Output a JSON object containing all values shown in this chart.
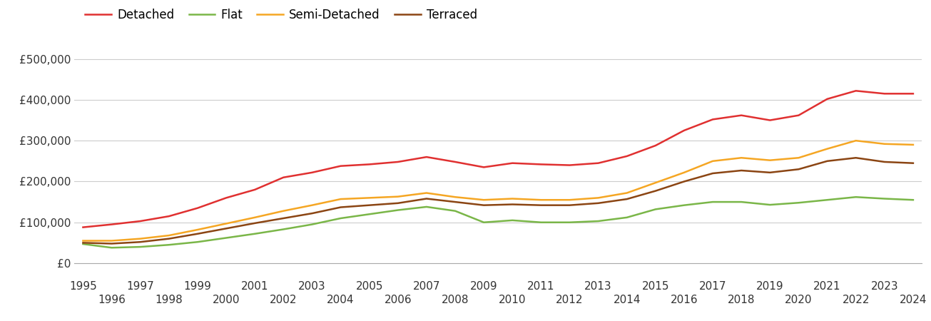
{
  "series": {
    "Detached": {
      "color": "#e03030",
      "years": [
        1995,
        1996,
        1997,
        1998,
        1999,
        2000,
        2001,
        2002,
        2003,
        2004,
        2005,
        2006,
        2007,
        2008,
        2009,
        2010,
        2011,
        2012,
        2013,
        2014,
        2015,
        2016,
        2017,
        2018,
        2019,
        2020,
        2021,
        2022,
        2023,
        2024
      ],
      "values": [
        88000,
        95000,
        103000,
        115000,
        135000,
        160000,
        180000,
        210000,
        222000,
        238000,
        242000,
        248000,
        260000,
        248000,
        235000,
        245000,
        242000,
        240000,
        245000,
        262000,
        288000,
        325000,
        352000,
        362000,
        350000,
        362000,
        402000,
        422000,
        415000,
        415000
      ]
    },
    "Flat": {
      "color": "#7ab648",
      "years": [
        1995,
        1996,
        1997,
        1998,
        1999,
        2000,
        2001,
        2002,
        2003,
        2004,
        2005,
        2006,
        2007,
        2008,
        2009,
        2010,
        2011,
        2012,
        2013,
        2014,
        2015,
        2016,
        2017,
        2018,
        2019,
        2020,
        2021,
        2022,
        2023,
        2024
      ],
      "values": [
        47000,
        38000,
        40000,
        45000,
        52000,
        62000,
        72000,
        83000,
        95000,
        110000,
        120000,
        130000,
        138000,
        128000,
        100000,
        105000,
        100000,
        100000,
        103000,
        112000,
        132000,
        142000,
        150000,
        150000,
        143000,
        148000,
        155000,
        162000,
        158000,
        155000
      ]
    },
    "Semi-Detached": {
      "color": "#f5a623",
      "years": [
        1995,
        1996,
        1997,
        1998,
        1999,
        2000,
        2001,
        2002,
        2003,
        2004,
        2005,
        2006,
        2007,
        2008,
        2009,
        2010,
        2011,
        2012,
        2013,
        2014,
        2015,
        2016,
        2017,
        2018,
        2019,
        2020,
        2021,
        2022,
        2023,
        2024
      ],
      "values": [
        55000,
        55000,
        60000,
        68000,
        82000,
        97000,
        112000,
        128000,
        142000,
        157000,
        160000,
        163000,
        172000,
        162000,
        155000,
        158000,
        155000,
        155000,
        160000,
        172000,
        197000,
        222000,
        250000,
        258000,
        252000,
        258000,
        280000,
        300000,
        292000,
        290000
      ]
    },
    "Terraced": {
      "color": "#8B4513",
      "years": [
        1995,
        1996,
        1997,
        1998,
        1999,
        2000,
        2001,
        2002,
        2003,
        2004,
        2005,
        2006,
        2007,
        2008,
        2009,
        2010,
        2011,
        2012,
        2013,
        2014,
        2015,
        2016,
        2017,
        2018,
        2019,
        2020,
        2021,
        2022,
        2023,
        2024
      ],
      "values": [
        50000,
        48000,
        52000,
        60000,
        72000,
        85000,
        98000,
        110000,
        122000,
        137000,
        142000,
        147000,
        158000,
        150000,
        142000,
        144000,
        142000,
        142000,
        147000,
        157000,
        177000,
        200000,
        220000,
        227000,
        222000,
        230000,
        250000,
        258000,
        248000,
        245000
      ]
    }
  },
  "xlim_min": 1994.7,
  "xlim_max": 2024.3,
  "ylim": [
    0,
    550000
  ],
  "yticks": [
    0,
    100000,
    200000,
    300000,
    400000,
    500000
  ],
  "ytick_labels": [
    "£0",
    "£100,000",
    "£200,000",
    "£300,000",
    "£400,000",
    "£500,000"
  ],
  "background_color": "#ffffff",
  "grid_color": "#cccccc",
  "line_width": 1.8,
  "legend_fontsize": 12,
  "tick_fontsize": 11
}
